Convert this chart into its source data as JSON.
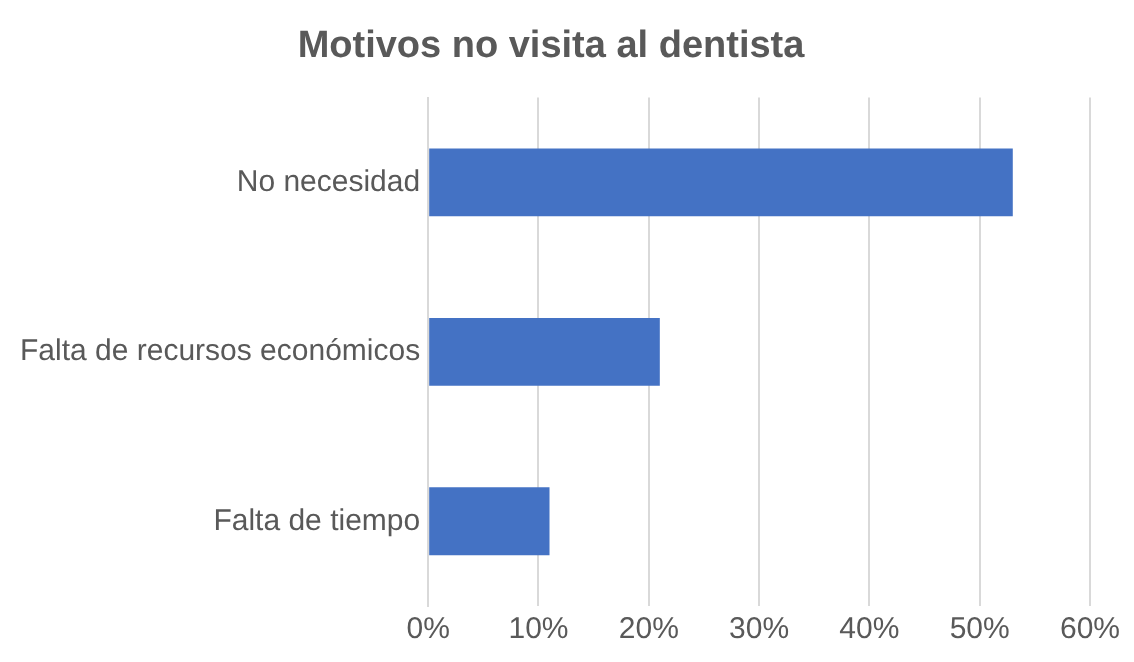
{
  "chart_data": {
    "type": "bar",
    "orientation": "horizontal",
    "title": "Motivos no visita al dentista",
    "categories": [
      "No necesidad",
      "Falta de recursos económicos",
      "Falta de tiempo"
    ],
    "values": [
      53,
      21,
      11
    ],
    "color": "#4472c4",
    "xlim": [
      0,
      60
    ],
    "xticks": [
      {
        "value": 0,
        "label": "0%"
      },
      {
        "value": 10,
        "label": "10%"
      },
      {
        "value": 20,
        "label": "20%"
      },
      {
        "value": 30,
        "label": "30%"
      },
      {
        "value": 40,
        "label": "40%"
      },
      {
        "value": 50,
        "label": "50%"
      },
      {
        "value": 60,
        "label": "60%"
      }
    ],
    "grid": "x",
    "legend": false
  }
}
